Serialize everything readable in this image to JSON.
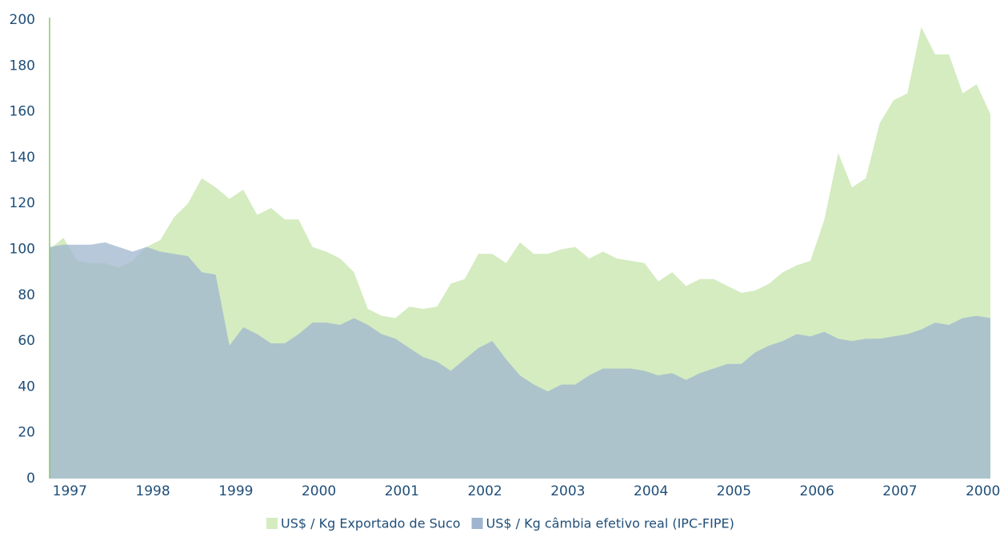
{
  "chart_data": {
    "type": "area",
    "categories": [
      null,
      "1997",
      null,
      null,
      null,
      null,
      null,
      "1998",
      null,
      null,
      null,
      null,
      null,
      "1999",
      null,
      null,
      null,
      null,
      null,
      "2000",
      null,
      null,
      null,
      null,
      null,
      "2001",
      null,
      null,
      null,
      null,
      null,
      "2002",
      null,
      null,
      null,
      null,
      null,
      "2003",
      null,
      null,
      null,
      null,
      null,
      "2004",
      null,
      null,
      null,
      null,
      null,
      "2005",
      null,
      null,
      null,
      null,
      null,
      "2006",
      null,
      null,
      null,
      null,
      null,
      "2007",
      null,
      null,
      null,
      null,
      null,
      "2000",
      null
    ],
    "series": [
      {
        "name": "US$ / Kg Exportado de Suco",
        "color": "#d4ecc0",
        "values": [
          100,
          105,
          95,
          94,
          94,
          92,
          95,
          101,
          104,
          114,
          120,
          131,
          127,
          122,
          126,
          115,
          118,
          113,
          113,
          101,
          99,
          96,
          90,
          74,
          71,
          70,
          75,
          74,
          75,
          85,
          87,
          98,
          98,
          94,
          103,
          98,
          98,
          100,
          101,
          96,
          99,
          96,
          95,
          94,
          86,
          90,
          84,
          87,
          87,
          84,
          81,
          82,
          85,
          90,
          93,
          95,
          113,
          142,
          127,
          131,
          155,
          165,
          168,
          197,
          185,
          185,
          168,
          172,
          159
        ]
      },
      {
        "name": "US$ / Kg câmbia efetivo real (IPC-FIPE)",
        "color": "#9fb5cf",
        "values": [
          101,
          102,
          102,
          102,
          103,
          101,
          99,
          101,
          99,
          98,
          97,
          90,
          89,
          58,
          66,
          63,
          59,
          59,
          63,
          68,
          68,
          67,
          70,
          67,
          63,
          61,
          57,
          53,
          51,
          47,
          52,
          57,
          60,
          52,
          45,
          41,
          38,
          41,
          41,
          45,
          48,
          48,
          48,
          47,
          45,
          46,
          43,
          46,
          48,
          50,
          50,
          55,
          58,
          60,
          63,
          62,
          64,
          61,
          60,
          61,
          61,
          62,
          63,
          65,
          68,
          67,
          70,
          71,
          70
        ]
      }
    ],
    "ylim": [
      0,
      200
    ],
    "yticks": [
      0,
      20,
      40,
      60,
      80,
      100,
      120,
      140,
      160,
      180,
      200
    ],
    "legend": "bottom"
  }
}
